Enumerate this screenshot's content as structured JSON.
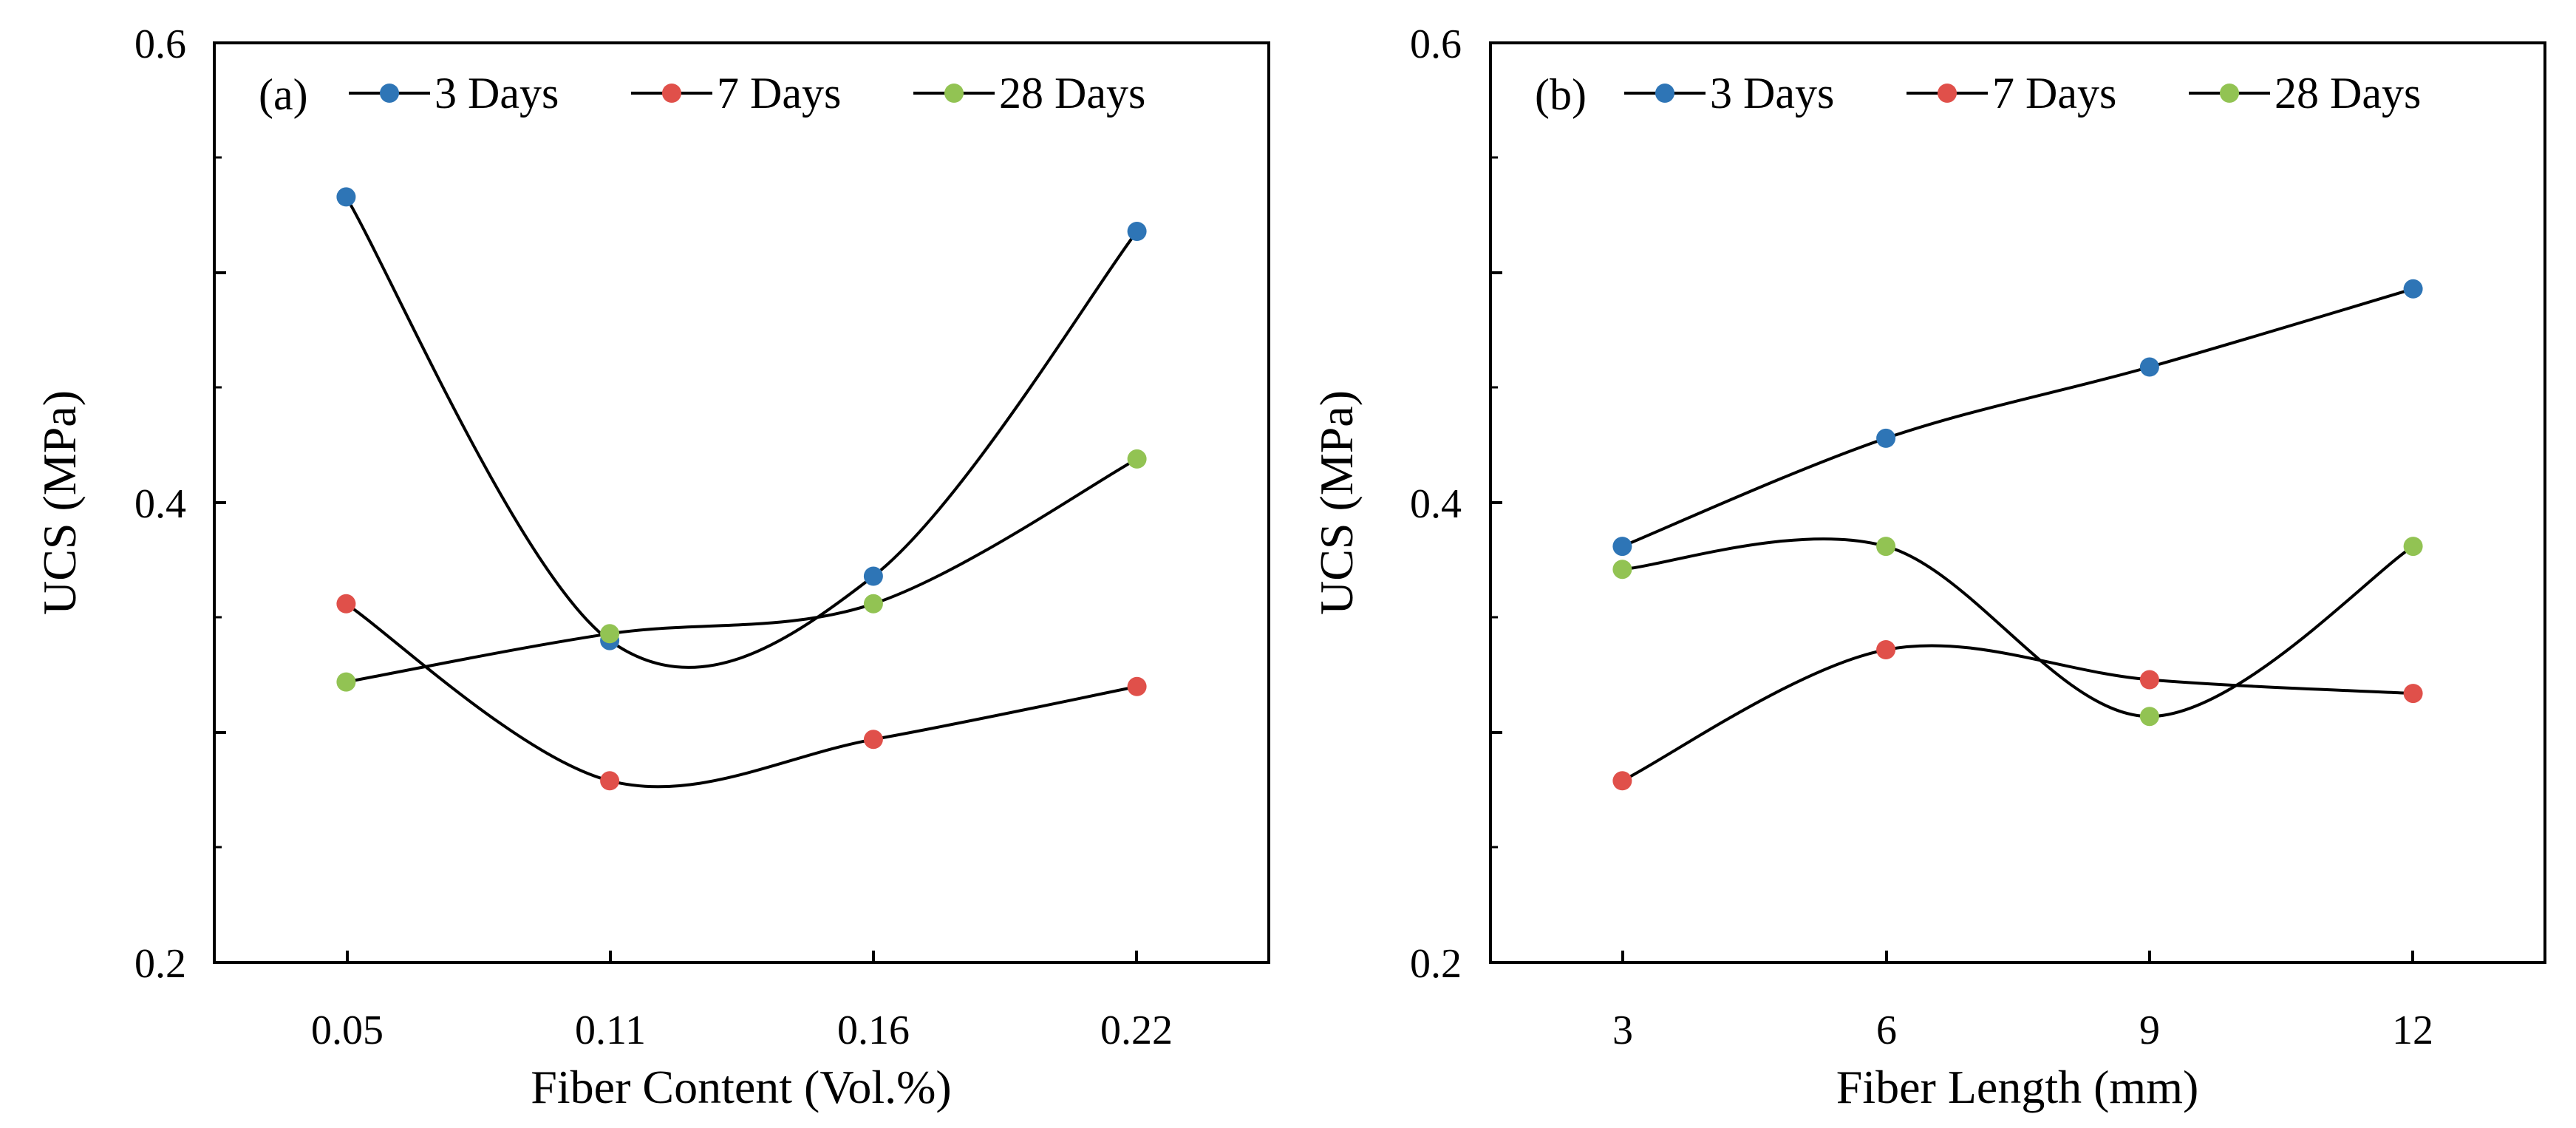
{
  "chart_data": [
    {
      "type": "line",
      "panel_label": "(a)",
      "xlabel": "Fiber Content (Vol.%)",
      "ylabel": "UCS (MPa)",
      "categories": [
        "0.05",
        "0.11",
        "0.16",
        "0.22"
      ],
      "ylim": [
        0.2,
        0.6
      ],
      "yticks": [
        0.2,
        0.4,
        0.6
      ],
      "ytick_labels": [
        "0.2",
        "0.4",
        "0.6"
      ],
      "legend_position": "top",
      "series": [
        {
          "name": "3 Days",
          "color": "#2E75B6",
          "values": [
            0.533,
            0.34,
            0.368,
            0.518
          ]
        },
        {
          "name": "7 Days",
          "color": "#E0504A",
          "values": [
            0.356,
            0.279,
            0.297,
            0.32
          ]
        },
        {
          "name": "28 Days",
          "color": "#92C353",
          "values": [
            0.322,
            0.343,
            0.356,
            0.419
          ]
        }
      ]
    },
    {
      "type": "line",
      "panel_label": "(b)",
      "xlabel": "Fiber Length (mm)",
      "ylabel": "UCS (MPa)",
      "categories": [
        "3",
        "6",
        "9",
        "12"
      ],
      "ylim": [
        0.2,
        0.6
      ],
      "yticks": [
        0.2,
        0.4,
        0.6
      ],
      "ytick_labels": [
        "0.2",
        "0.4",
        "0.6"
      ],
      "legend_position": "top",
      "series": [
        {
          "name": "3 Days",
          "color": "#2E75B6",
          "values": [
            0.381,
            0.428,
            0.459,
            0.493
          ]
        },
        {
          "name": "7 Days",
          "color": "#E0504A",
          "values": [
            0.279,
            0.336,
            0.323,
            0.317
          ]
        },
        {
          "name": "28 Days",
          "color": "#92C353",
          "values": [
            0.371,
            0.381,
            0.307,
            0.381
          ]
        }
      ]
    }
  ]
}
